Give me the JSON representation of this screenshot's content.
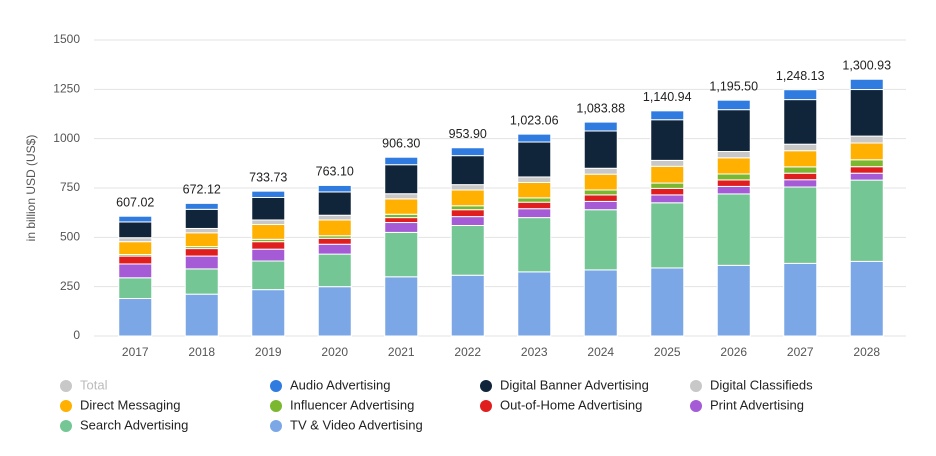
{
  "chart_data": {
    "type": "stacked-bar",
    "y_label": "in billion USD (US$)",
    "categories": [
      "2017",
      "2018",
      "2019",
      "2020",
      "2021",
      "2022",
      "2023",
      "2024",
      "2025",
      "2026",
      "2027",
      "2028"
    ],
    "ylim": [
      0,
      1500
    ],
    "yticks": [
      0,
      250,
      500,
      750,
      1000,
      1250,
      1500
    ],
    "grid": true,
    "series": [
      {
        "name": "Total",
        "color": "#c8c8c8",
        "values": [
          607.02,
          672.12,
          733.73,
          763.1,
          906.3,
          953.9,
          1023.06,
          1083.88,
          1140.94,
          1195.5,
          1248.13,
          1300.93
        ],
        "value_labels": [
          "607.02",
          "672.12",
          "733.73",
          "763.10",
          "906.30",
          "953.90",
          "1,023.06",
          "1,083.88",
          "1,140.94",
          "1,195.50",
          "1,248.13",
          "1,300.93"
        ]
      },
      {
        "name": "Audio Advertising",
        "color": "#2f7be0",
        "values": [
          29,
          30,
          32,
          33,
          38,
          40,
          40,
          45,
          45,
          48,
          50,
          52
        ]
      },
      {
        "name": "Digital Banner Advertising",
        "color": "#10243a",
        "values": [
          80,
          97,
          114,
          118,
          147,
          147,
          177,
          189,
          206,
          212,
          226,
          236
        ]
      },
      {
        "name": "Digital Classifieds",
        "color": "#c8c8c8",
        "values": [
          20,
          22,
          23,
          24,
          26,
          27,
          28,
          30,
          30,
          32,
          33,
          35
        ]
      },
      {
        "name": "Direct Messaging",
        "color": "#ffb000",
        "values": [
          65,
          70,
          75,
          80,
          78,
          80,
          78,
          80,
          85,
          82,
          82,
          85
        ]
      },
      {
        "name": "Influencer Advertising",
        "color": "#7cb82f",
        "values": [
          8,
          10,
          12,
          13,
          17,
          20,
          22,
          25,
          27,
          30,
          32,
          35
        ]
      },
      {
        "name": "Out-of-Home Advertising",
        "color": "#e01e1e",
        "values": [
          40,
          38,
          38,
          30,
          25,
          35,
          33,
          33,
          33,
          33,
          33,
          33
        ]
      },
      {
        "name": "Print Advertising",
        "color": "#a55ad6",
        "values": [
          70,
          65,
          60,
          50,
          50,
          45,
          45,
          42,
          40,
          38,
          37,
          35
        ]
      },
      {
        "name": "Search Advertising",
        "color": "#74c795",
        "values": [
          105,
          128,
          145,
          165,
          225,
          252,
          275,
          305,
          330,
          362,
          387,
          412
        ]
      },
      {
        "name": "TV & Video Advertising",
        "color": "#7ba7e6",
        "values": [
          190,
          212,
          235,
          250,
          300,
          308,
          325,
          335,
          345,
          358,
          368,
          378
        ]
      }
    ]
  }
}
